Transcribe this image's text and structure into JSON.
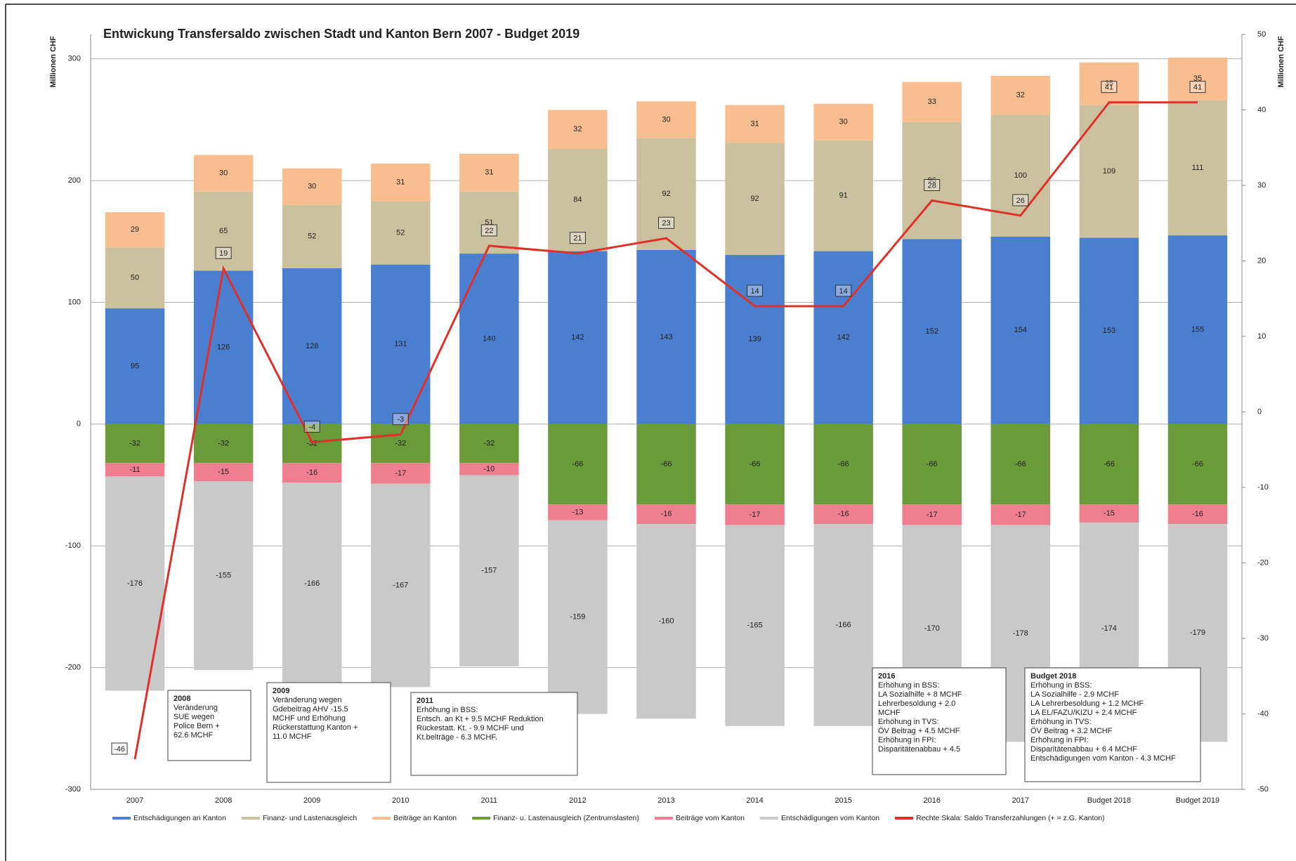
{
  "chart_data": {
    "type": "bar",
    "stacked": true,
    "title": "Entwickung Transfersaldo zwischen Stadt und Kanton Bern 2007 - Budget 2019",
    "y_label": "Millionen CHF",
    "y2_label": "Millionen CHF",
    "categories": [
      "2007",
      "2008",
      "2009",
      "2010",
      "2011",
      "2012",
      "2013",
      "2014",
      "2015",
      "2016",
      "2017",
      "Budget 2018",
      "Budget 2019"
    ],
    "series": [
      {
        "name": "Entschädigungen an Kanton",
        "color": "#4a7fd0",
        "values": [
          95,
          126,
          128,
          131,
          140,
          142,
          143,
          139,
          142,
          152,
          154,
          153,
          155
        ]
      },
      {
        "name": "Finanz- und Lastenausgleich",
        "color": "#cbc19e",
        "values": [
          50,
          65,
          52,
          52,
          51,
          84,
          92,
          92,
          91,
          96,
          100,
          109,
          111
        ]
      },
      {
        "name": "Beiträge an Kanton",
        "color": "#f9be8f",
        "values": [
          29,
          30,
          30,
          31,
          31,
          32,
          30,
          31,
          30,
          33,
          32,
          35,
          35
        ]
      },
      {
        "name": "Finanz- u. Lastenausgleich (Zentrumslasten)",
        "color": "#6b9a3b",
        "values": [
          -32,
          -32,
          -32,
          -32,
          -32,
          -66,
          -66,
          -66,
          -66,
          -66,
          -66,
          -66,
          -66
        ]
      },
      {
        "name": "Beiträge vom Kanton",
        "color": "#ef7f8f",
        "values": [
          -11,
          -15,
          -16,
          -17,
          -10,
          -13,
          -16,
          -17,
          -16,
          -17,
          -17,
          -15,
          -16
        ]
      },
      {
        "name": "Entschädigungen vom Kanton",
        "color": "#c9c9c9",
        "values": [
          -176,
          -155,
          -166,
          -167,
          -157,
          -159,
          -160,
          -165,
          -166,
          -170,
          -178,
          -174,
          -179
        ]
      },
      {
        "name": "Rechte Skala: Saldo Transferzahlungen (+ = z.G. Kanton)",
        "color": "#e0302c",
        "type": "line",
        "axis": "y2",
        "values": [
          -46,
          19,
          -4,
          -3,
          22,
          21,
          23,
          14,
          14,
          28,
          26,
          41,
          41
        ]
      }
    ],
    "ylim": [
      -300,
      320
    ],
    "yticks": [
      -300,
      -200,
      -100,
      0,
      100,
      200,
      300
    ],
    "y2lim": [
      -50,
      50
    ],
    "y2ticks": [
      -50,
      -40,
      -30,
      -20,
      -10,
      0,
      10,
      20,
      30,
      40,
      50
    ],
    "grid": true,
    "legend": "bottom",
    "annotations": [
      {
        "title": "2008",
        "lines": [
          "Veränderung",
          "SUE wegen",
          "Police Bern  +",
          "62.6 MCHF"
        ]
      },
      {
        "title": "2009",
        "lines": [
          "Veränderung wegen",
          "Gdebeitrag AHV -15.5",
          "MCHF und Erhöhung",
          "Rückerstattung Kanton +",
          "11.0 MCHF"
        ]
      },
      {
        "title": "2011",
        "lines": [
          "Erhöhung in BSS:",
          "Entsch. an Kt + 9.5 MCHF Reduktion",
          "Rückestatt. Kt. - 9.9 MCHF und",
          "Kt.beiträge - 6.3 MCHF."
        ]
      },
      {
        "title": "2016",
        "lines": [
          "Erhöhung in BSS:",
          "LA Sozialhilfe + 8 MCHF",
          "Lehrerbesoldung +  2.0",
          "MCHF",
          "Erhöhung in TVS:",
          "ÖV Beitrag + 4.5 MCHF",
          "Erhöhung in FPI:",
          "Disparitätenabbau + 4.5"
        ]
      },
      {
        "title": "Budget 2018",
        "lines": [
          "Erhöhung in BSS:",
          "LA Sozialhilfe - 2.9 MCHF",
          "LA Lehrerbesoldung + 1.2 MCHF",
          "LA EL/FAZU/KIZU + 2.4 MCHF",
          "Erhöhung in TVS:",
          "ÖV Beitrag + 3.2 MCHF",
          "Erhöhung in FPI:",
          "Disparitätenabbau + 6.4 MCHF",
          "Entschädigungen vom Kanton - 4.3 MCHF"
        ]
      }
    ]
  }
}
